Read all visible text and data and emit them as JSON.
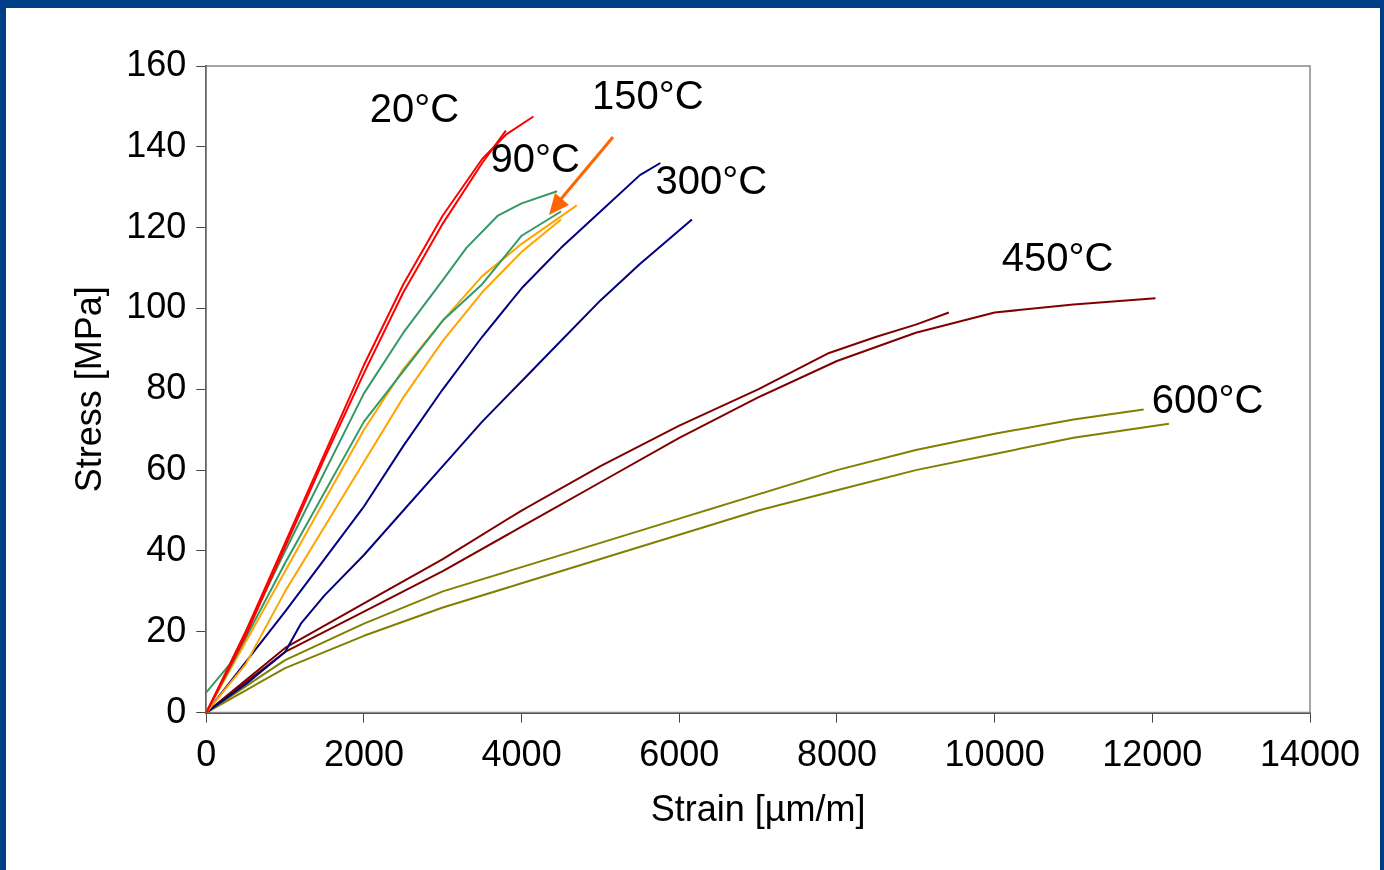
{
  "chart_data": {
    "type": "line",
    "xlabel": "Strain [µm/m]",
    "ylabel": "Stress [MPa]",
    "xlim": [
      0,
      14000
    ],
    "xticks": [
      0,
      2000,
      4000,
      6000,
      8000,
      10000,
      12000,
      14000
    ],
    "ylim": [
      0,
      160
    ],
    "yticks": [
      0,
      20,
      40,
      60,
      80,
      100,
      120,
      140,
      160
    ],
    "grid": false,
    "legend": false,
    "marker": "none",
    "line_style": "solid",
    "series": [
      {
        "name": "20°C",
        "color": "#ff0000",
        "x": [
          0,
          500,
          1000,
          1500,
          2000,
          2500,
          3000,
          3500,
          3800,
          4150
        ],
        "values": [
          0,
          20,
          42,
          64,
          86,
          106,
          123,
          137,
          143,
          147.5
        ]
      },
      {
        "color": "#ff0000",
        "x": [
          0,
          500,
          1000,
          1500,
          2000,
          2500,
          3000,
          3500,
          3800
        ],
        "values": [
          0,
          19,
          41,
          63,
          84,
          104,
          121,
          136,
          144
        ]
      },
      {
        "name": "90°C",
        "color": "#339966",
        "x": [
          0,
          300,
          1000,
          2000,
          2500,
          3000,
          3300,
          3700,
          4000,
          4450
        ],
        "values": [
          5,
          12,
          40,
          79,
          94,
          107,
          115,
          123,
          126,
          129
        ]
      },
      {
        "color": "#339966",
        "x": [
          0,
          1000,
          2000,
          3000,
          3500,
          4000,
          4500
        ],
        "values": [
          0,
          37,
          72,
          97,
          106,
          118,
          124
        ]
      },
      {
        "name": "150°C",
        "color": "#ffa500",
        "x": [
          0,
          1000,
          2000,
          2500,
          3000,
          3500,
          4000,
          4700
        ],
        "values": [
          0,
          35,
          70,
          85,
          97,
          108,
          116,
          125.5
        ]
      },
      {
        "color": "#ffa500",
        "x": [
          0,
          500,
          1000,
          2000,
          2500,
          3000,
          3500,
          4000,
          4500
        ],
        "values": [
          0,
          12,
          30,
          62,
          78,
          92,
          104,
          114,
          122
        ]
      },
      {
        "name": "300°C",
        "color": "#000080",
        "x": [
          0,
          1000,
          1500,
          2000,
          2500,
          3000,
          3500,
          4000,
          4500,
          5000,
          5500,
          5760
        ],
        "values": [
          0,
          25,
          38,
          51,
          66,
          80,
          93,
          105,
          115,
          124,
          133,
          136
        ]
      },
      {
        "color": "#000080",
        "x": [
          0,
          500,
          1000,
          1200,
          1500,
          2000,
          2500,
          3000,
          3500,
          4000,
          4500,
          5000,
          5500,
          6160
        ],
        "values": [
          0,
          7,
          15,
          22,
          29,
          39,
          50,
          61,
          72,
          82,
          92,
          102,
          111,
          122
        ]
      },
      {
        "color": "#800000",
        "x": [
          0,
          1000,
          2000,
          3000,
          4000,
          5000,
          6000,
          7000,
          7900,
          8500,
          9000,
          9420
        ],
        "values": [
          0,
          16,
          27,
          38,
          50,
          61,
          71,
          80,
          89,
          93,
          96,
          99
        ]
      },
      {
        "name": "450°C",
        "color": "#800000",
        "x": [
          0,
          1000,
          2000,
          3000,
          4000,
          5000,
          6000,
          7000,
          8000,
          9000,
          10000,
          11000,
          12040
        ],
        "values": [
          0,
          15,
          25,
          35,
          46,
          57,
          68,
          78,
          87,
          94,
          99,
          101,
          102.5
        ]
      },
      {
        "name": "600°C",
        "color": "#808000",
        "x": [
          0,
          1000,
          2000,
          3000,
          4000,
          5000,
          6000,
          7000,
          8000,
          9000,
          10000,
          11000,
          11890
        ],
        "values": [
          0,
          13,
          22,
          30,
          36,
          42,
          48,
          54,
          60,
          65,
          69,
          72.5,
          75
        ]
      },
      {
        "color": "#808000",
        "x": [
          0,
          1000,
          2000,
          3000,
          4000,
          5000,
          6000,
          7000,
          8000,
          9000,
          10000,
          11000,
          12210
        ],
        "values": [
          0,
          11,
          19,
          26,
          32,
          38,
          44,
          50,
          55,
          60,
          64,
          68,
          71.5
        ]
      }
    ]
  }
}
